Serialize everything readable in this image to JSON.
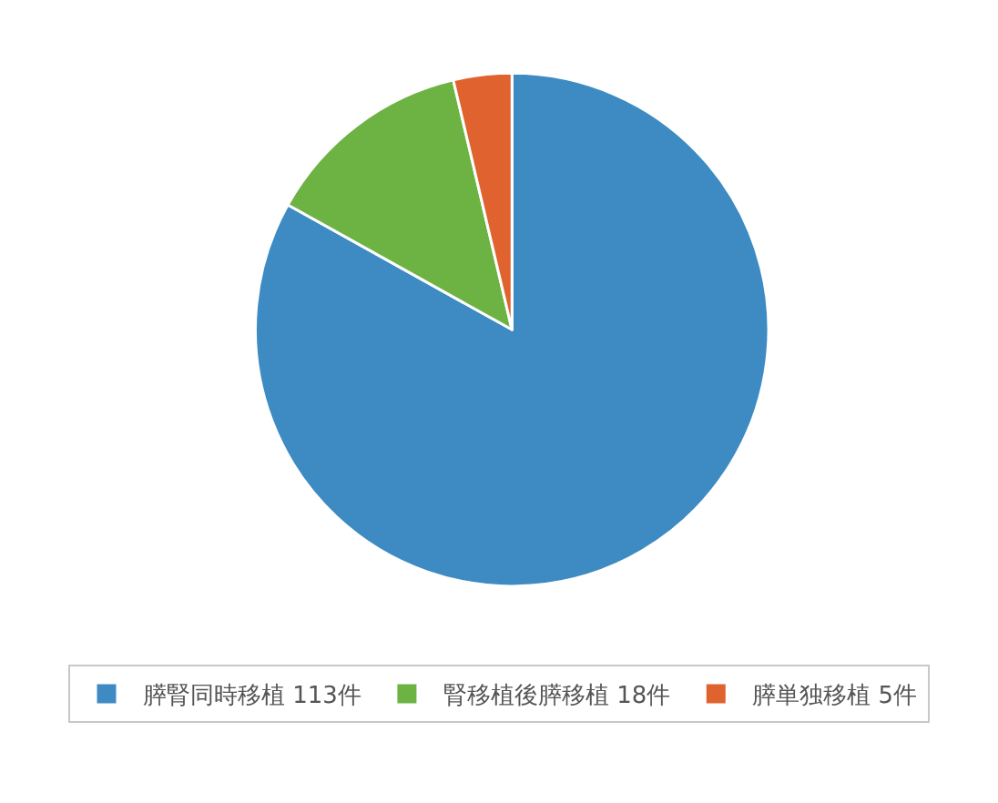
{
  "chart_data": {
    "type": "pie",
    "categories": [
      "膵腎同時移植 113件",
      "腎移植後膵移植 18件",
      "膵単独移植 5件"
    ],
    "values": [
      113,
      18,
      5
    ],
    "colors": [
      "#3d8bc2",
      "#6db344",
      "#e0622f"
    ],
    "legend": "bottom"
  }
}
